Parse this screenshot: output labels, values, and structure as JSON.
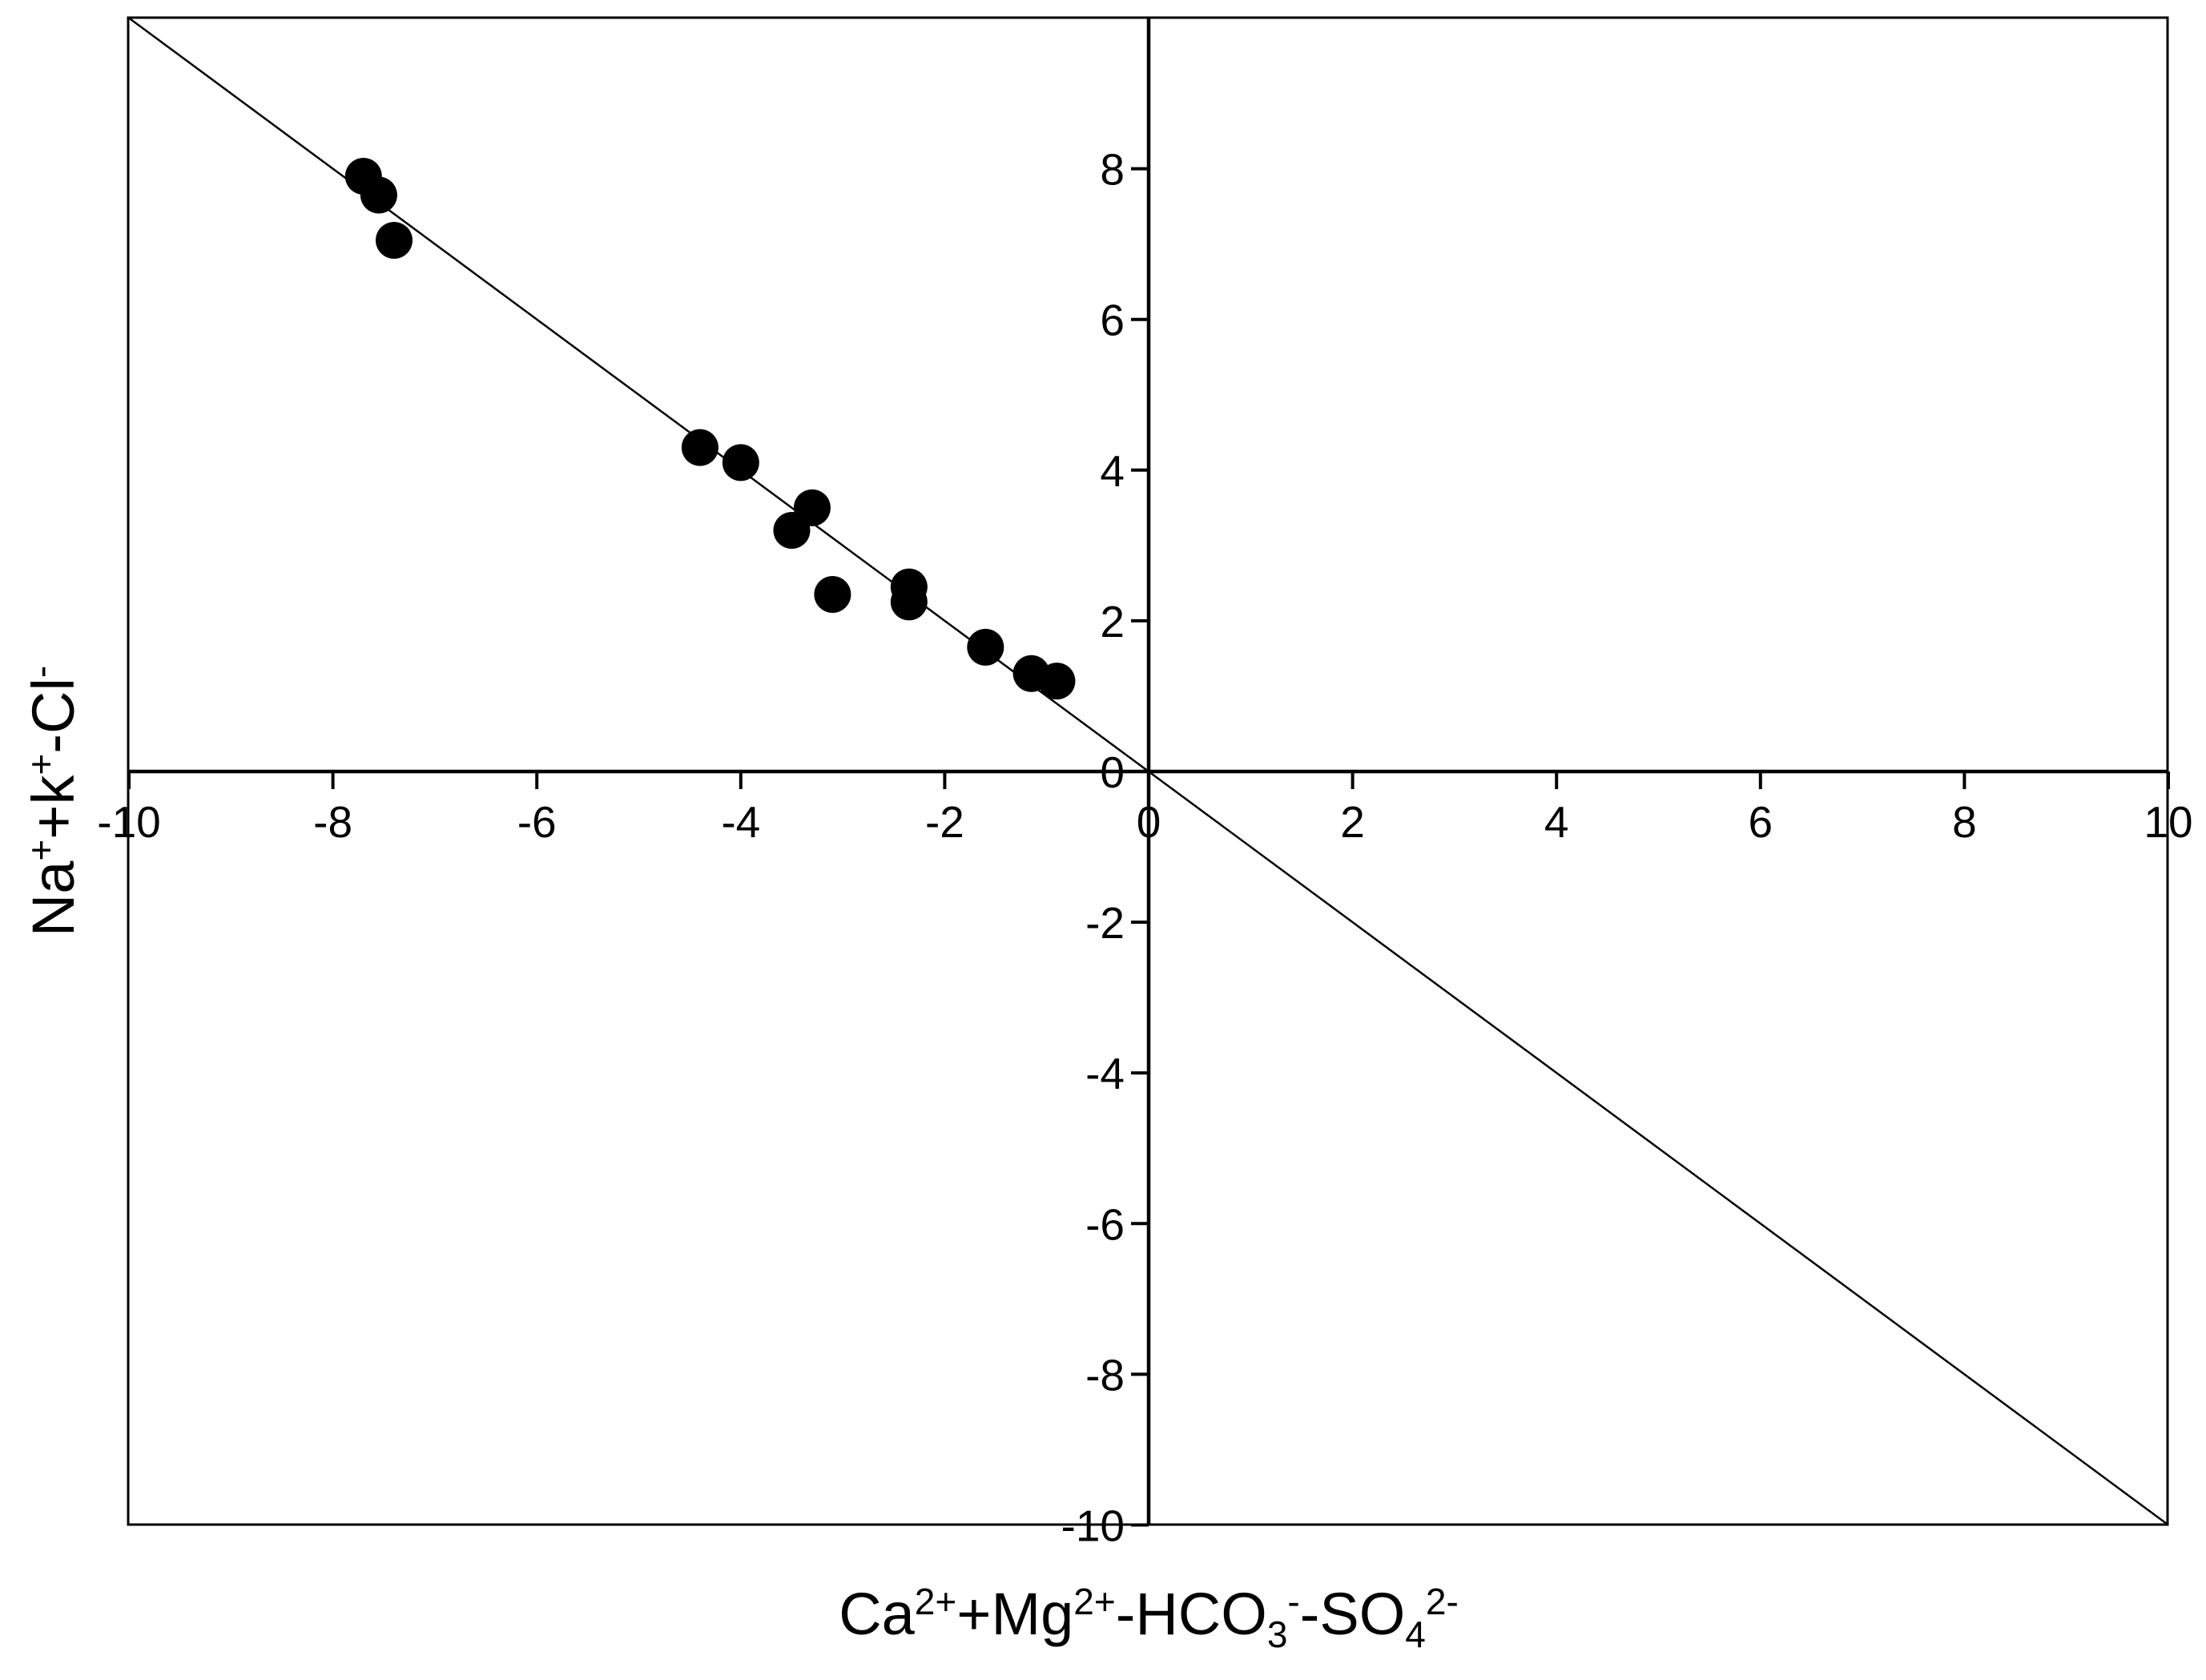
{
  "chart_data": {
    "type": "scatter",
    "title": "",
    "xlabel": {
      "parts": [
        {
          "t": "Ca"
        },
        {
          "t": "2+",
          "s": "sup"
        },
        {
          "t": "+Mg"
        },
        {
          "t": "2+",
          "s": "sup"
        },
        {
          "t": "-HCO"
        },
        {
          "t": "3",
          "s": "sub"
        },
        {
          "t": "-",
          "s": "sup"
        },
        {
          "t": "-SO"
        },
        {
          "t": "4",
          "s": "sub"
        },
        {
          "t": "2-",
          "s": "sup"
        }
      ]
    },
    "ylabel": {
      "parts": [
        {
          "t": "Na"
        },
        {
          "t": "+",
          "s": "sup"
        },
        {
          "t": "+k"
        },
        {
          "t": "+",
          "s": "sup"
        },
        {
          "t": "-Cl"
        },
        {
          "t": "-",
          "s": "sup"
        }
      ]
    },
    "xlim": [
      -10,
      10
    ],
    "ylim": [
      -10,
      10
    ],
    "x_ticks": [
      -10,
      -8,
      -6,
      -4,
      -2,
      0,
      2,
      4,
      6,
      8,
      10
    ],
    "y_ticks": [
      -10,
      -8,
      -6,
      -4,
      -2,
      0,
      2,
      4,
      6,
      8
    ],
    "grid": false,
    "reference_line": {
      "slope": -1,
      "intercept": 0
    },
    "point_color": "#000000",
    "points": [
      {
        "x": -7.7,
        "y": 7.9
      },
      {
        "x": -7.55,
        "y": 7.65
      },
      {
        "x": -7.4,
        "y": 7.05
      },
      {
        "x": -4.4,
        "y": 4.3
      },
      {
        "x": -4.0,
        "y": 4.1
      },
      {
        "x": -3.3,
        "y": 3.5
      },
      {
        "x": -3.5,
        "y": 3.2
      },
      {
        "x": -3.1,
        "y": 2.35
      },
      {
        "x": -2.35,
        "y": 2.45
      },
      {
        "x": -2.35,
        "y": 2.25
      },
      {
        "x": -1.6,
        "y": 1.65
      },
      {
        "x": -1.15,
        "y": 1.3
      },
      {
        "x": -0.9,
        "y": 1.2
      }
    ]
  }
}
